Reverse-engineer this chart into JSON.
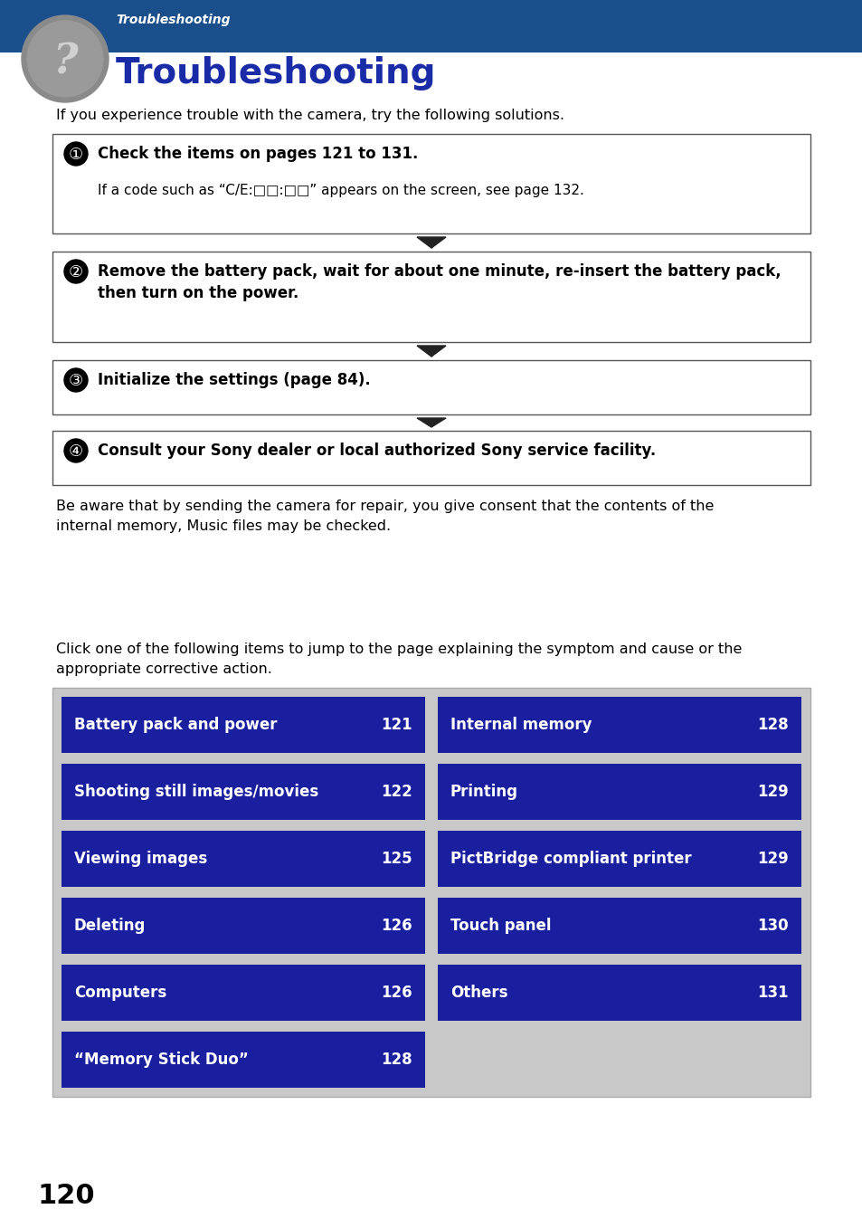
{
  "header_bg_color": "#1b4f8c",
  "header_text_italic": "Troubleshooting",
  "header_title": "Troubleshooting",
  "header_title_color": "#1a2ba8",
  "bg_color": "#ffffff",
  "intro_text": "If you experience trouble with the camera, try the following solutions.",
  "steps": [
    {
      "number": "①",
      "bold_text": "Check the items on pages 121 to 131.",
      "sub_text": "If a code such as “C/E:□□:□□” appears on the screen, see page 132."
    },
    {
      "number": "②",
      "bold_text": "Remove the battery pack, wait for about one minute, re-insert the battery pack,\nthen turn on the power.",
      "sub_text": ""
    },
    {
      "number": "③",
      "bold_text": "Initialize the settings (page 84).",
      "sub_text": ""
    },
    {
      "number": "④",
      "bold_text": "Consult your Sony dealer or local authorized Sony service facility.",
      "sub_text": ""
    }
  ],
  "footer_text": "Be aware that by sending the camera for repair, you give consent that the contents of the\ninternal memory, Music files may be checked.",
  "click_text": "Click one of the following items to jump to the page explaining the symptom and cause or the\nappropriate corrective action.",
  "table_bg": "#c8c8c8",
  "cell_bg": "#1a1fa0",
  "cell_text_color": "#ffffff",
  "left_items": [
    [
      "Battery pack and power",
      "121"
    ],
    [
      "Shooting still images/movies",
      "122"
    ],
    [
      "Viewing images",
      "125"
    ],
    [
      "Deleting",
      "126"
    ],
    [
      "Computers",
      "126"
    ],
    [
      "“Memory Stick Duo”",
      "128"
    ]
  ],
  "right_items": [
    [
      "Internal memory",
      "128"
    ],
    [
      "Printing",
      "129"
    ],
    [
      "PictBridge compliant printer",
      "129"
    ],
    [
      "Touch panel",
      "130"
    ],
    [
      "Others",
      "131"
    ],
    [
      "",
      ""
    ]
  ],
  "page_number": "120",
  "arrow_color": "#222222"
}
